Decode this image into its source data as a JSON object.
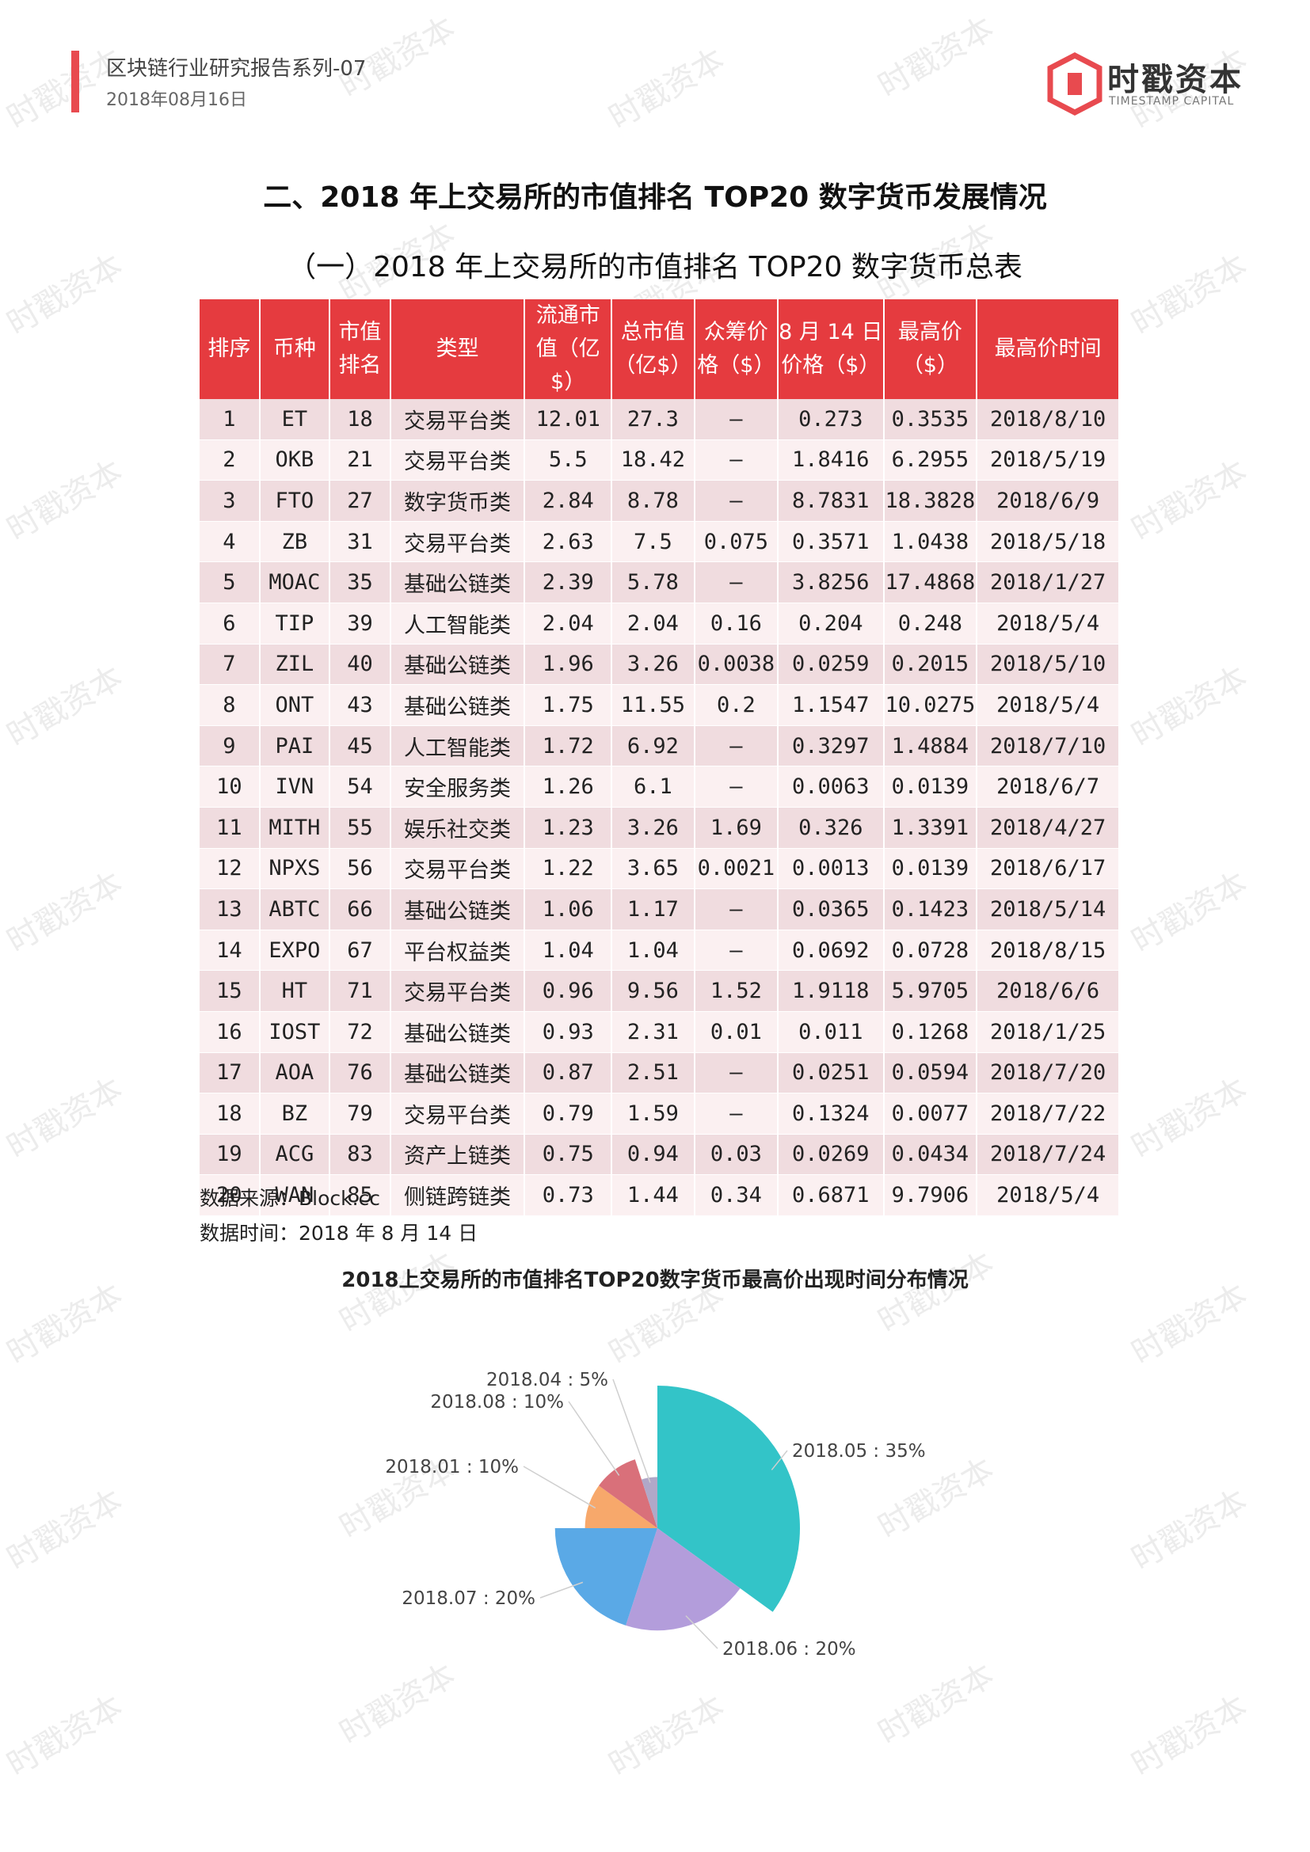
{
  "header": {
    "series": "区块链行业研究报告系列-07",
    "date": "2018年08月16日",
    "logo_name": "时戳资本",
    "logo_sub": "TIMESTAMP CAPITAL",
    "accent": "#e84a4f"
  },
  "watermark": "时戳资本",
  "section_title": "二、2018 年上交易所的市值排名 TOP20 数字货币发展情况",
  "subsection_title": "（一）2018 年上交易所的市值排名 TOP20 数字货币总表",
  "table": {
    "columns": [
      "排序",
      "币种",
      "市值\n排名",
      "类型",
      "流通市\n值（亿$）",
      "总市值\n（亿$）",
      "众筹价\n格（$）",
      "8 月 14 日\n价格（$）",
      "最高价\n（$）",
      "最高价时间"
    ],
    "rows": [
      [
        "1",
        "ET",
        "18",
        "交易平台类",
        "12.01",
        "27.3",
        "—",
        "0.273",
        "0.3535",
        "2018/8/10"
      ],
      [
        "2",
        "OKB",
        "21",
        "交易平台类",
        "5.5",
        "18.42",
        "—",
        "1.8416",
        "6.2955",
        "2018/5/19"
      ],
      [
        "3",
        "FTO",
        "27",
        "数字货币类",
        "2.84",
        "8.78",
        "—",
        "8.7831",
        "18.3828",
        "2018/6/9"
      ],
      [
        "4",
        "ZB",
        "31",
        "交易平台类",
        "2.63",
        "7.5",
        "0.075",
        "0.3571",
        "1.0438",
        "2018/5/18"
      ],
      [
        "5",
        "MOAC",
        "35",
        "基础公链类",
        "2.39",
        "5.78",
        "—",
        "3.8256",
        "17.4868",
        "2018/1/27"
      ],
      [
        "6",
        "TIP",
        "39",
        "人工智能类",
        "2.04",
        "2.04",
        "0.16",
        "0.204",
        "0.248",
        "2018/5/4"
      ],
      [
        "7",
        "ZIL",
        "40",
        "基础公链类",
        "1.96",
        "3.26",
        "0.0038",
        "0.0259",
        "0.2015",
        "2018/5/10"
      ],
      [
        "8",
        "ONT",
        "43",
        "基础公链类",
        "1.75",
        "11.55",
        "0.2",
        "1.1547",
        "10.0275",
        "2018/5/4"
      ],
      [
        "9",
        "PAI",
        "45",
        "人工智能类",
        "1.72",
        "6.92",
        "—",
        "0.3297",
        "1.4884",
        "2018/7/10"
      ],
      [
        "10",
        "IVN",
        "54",
        "安全服务类",
        "1.26",
        "6.1",
        "—",
        "0.0063",
        "0.0139",
        "2018/6/7"
      ],
      [
        "11",
        "MITH",
        "55",
        "娱乐社交类",
        "1.23",
        "3.26",
        "1.69",
        "0.326",
        "1.3391",
        "2018/4/27"
      ],
      [
        "12",
        "NPXS",
        "56",
        "交易平台类",
        "1.22",
        "3.65",
        "0.0021",
        "0.0013",
        "0.0139",
        "2018/6/17"
      ],
      [
        "13",
        "ABTC",
        "66",
        "基础公链类",
        "1.06",
        "1.17",
        "—",
        "0.0365",
        "0.1423",
        "2018/5/14"
      ],
      [
        "14",
        "EXPO",
        "67",
        "平台权益类",
        "1.04",
        "1.04",
        "—",
        "0.0692",
        "0.0728",
        "2018/8/15"
      ],
      [
        "15",
        "HT",
        "71",
        "交易平台类",
        "0.96",
        "9.56",
        "1.52",
        "1.9118",
        "5.9705",
        "2018/6/6"
      ],
      [
        "16",
        "IOST",
        "72",
        "基础公链类",
        "0.93",
        "2.31",
        "0.01",
        "0.011",
        "0.1268",
        "2018/1/25"
      ],
      [
        "17",
        "AOA",
        "76",
        "基础公链类",
        "0.87",
        "2.51",
        "—",
        "0.0251",
        "0.0594",
        "2018/7/20"
      ],
      [
        "18",
        "BZ",
        "79",
        "交易平台类",
        "0.79",
        "1.59",
        "—",
        "0.1324",
        "0.0077",
        "2018/7/22"
      ],
      [
        "19",
        "ACG",
        "83",
        "资产上链类",
        "0.75",
        "0.94",
        "0.03",
        "0.0269",
        "0.0434",
        "2018/7/24"
      ],
      [
        "20",
        "WAN",
        "85",
        "侧链跨链类",
        "0.73",
        "1.44",
        "0.34",
        "0.6871",
        "9.7906",
        "2018/5/4"
      ]
    ]
  },
  "source_note": "数据来源：Block.cc",
  "time_note": "数据时间：2018 年 8 月 14 日",
  "chart_data": {
    "type": "pie",
    "title": "2018上交易所的市值排名TOP20数字货币最高价出现时间分布情况",
    "slices": [
      {
        "label": "2018.05 : 35%",
        "value": 35,
        "color": "#33c4c8"
      },
      {
        "label": "2018.06 : 20%",
        "value": 20,
        "color": "#b39ddb"
      },
      {
        "label": "2018.07 : 20%",
        "value": 20,
        "color": "#5aa9e6"
      },
      {
        "label": "2018.01 : 10%",
        "value": 10,
        "color": "#f7a86b"
      },
      {
        "label": "2018.08 : 10%",
        "value": 10,
        "color": "#d9707a"
      },
      {
        "label": "2018.04 : 5%",
        "value": 5,
        "color": "#b0a8c8"
      }
    ]
  }
}
